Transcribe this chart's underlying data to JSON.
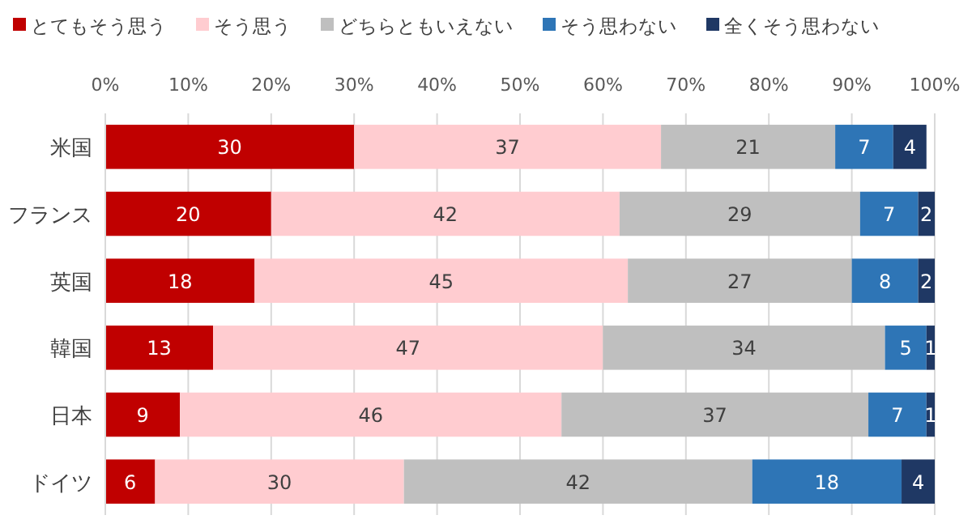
{
  "chart_data": {
    "type": "bar",
    "orientation": "horizontal",
    "stacked": true,
    "data_labels": true,
    "grid": "x",
    "legend": "top",
    "categories": [
      "米国",
      "フランス",
      "英国",
      "韓国",
      "日本",
      "ドイツ"
    ],
    "xlim": [
      0,
      100
    ],
    "xticks": [
      {
        "value": 0,
        "label": "0%"
      },
      {
        "value": 10,
        "label": "10%"
      },
      {
        "value": 20,
        "label": "20%"
      },
      {
        "value": 30,
        "label": "30%"
      },
      {
        "value": 40,
        "label": "40%"
      },
      {
        "value": 50,
        "label": "50%"
      },
      {
        "value": 60,
        "label": "60%"
      },
      {
        "value": 70,
        "label": "70%"
      },
      {
        "value": 80,
        "label": "80%"
      },
      {
        "value": 90,
        "label": "90%"
      },
      {
        "value": 100,
        "label": "100%"
      }
    ],
    "series": [
      {
        "name": "とてもそう思う",
        "color": "#c00000",
        "values": [
          30,
          20,
          18,
          13,
          9,
          6
        ]
      },
      {
        "name": "そう思う",
        "color": "#ffccd0",
        "values": [
          37,
          42,
          45,
          47,
          46,
          30
        ]
      },
      {
        "name": "どちらともいえない",
        "color": "#bfbfbf",
        "values": [
          21,
          29,
          27,
          34,
          37,
          42
        ]
      },
      {
        "name": "そう思わない",
        "color": "#2e75b6",
        "values": [
          7,
          7,
          8,
          5,
          7,
          18
        ]
      },
      {
        "name": "全くそう思わない",
        "color": "#1f3864",
        "values": [
          4,
          2,
          2,
          1,
          1,
          4
        ]
      }
    ]
  }
}
